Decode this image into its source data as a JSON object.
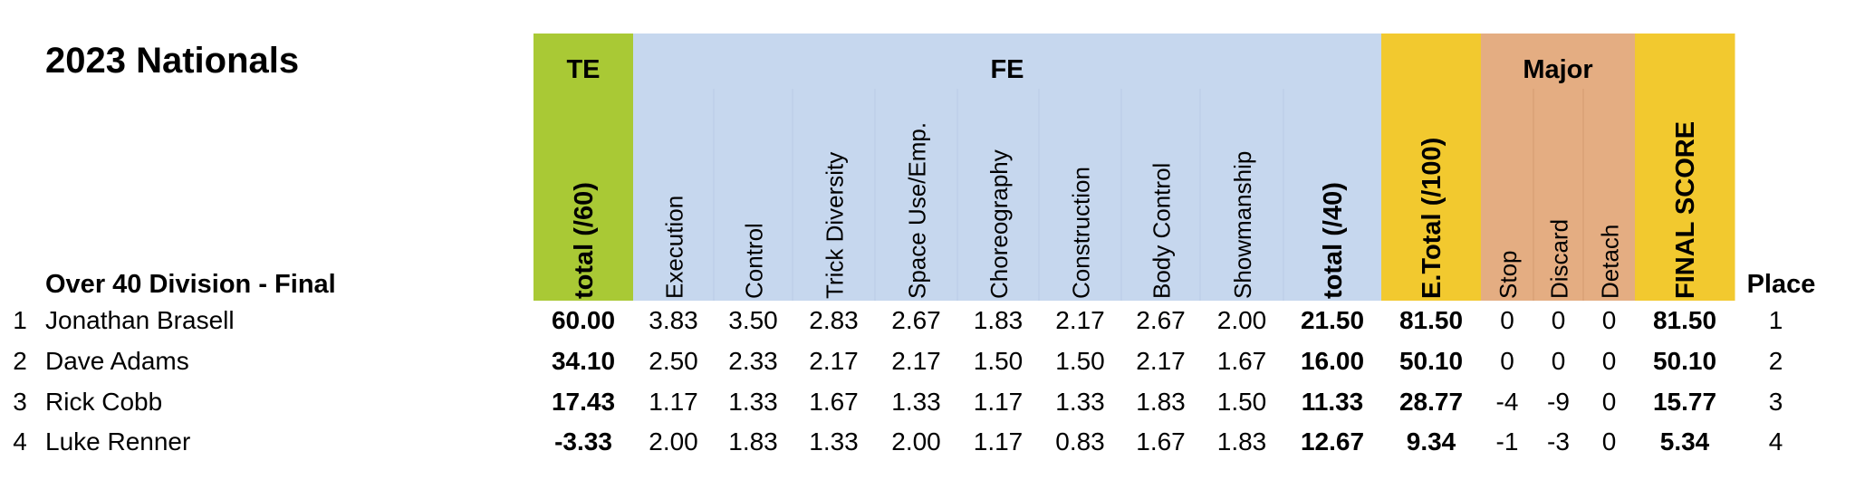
{
  "title": "2023 Nationals",
  "subtitle": "Over 40 Division - Final",
  "groups": [
    "TE",
    "FE",
    "Major"
  ],
  "columns": [
    "total (/60)",
    "Execution",
    "Control",
    "Trick Diversity",
    "Space Use/Emp.",
    "Choreography",
    "Construction",
    "Body Control",
    "Showmanship",
    "total (/40)",
    "E.Total (/100)",
    "Stop",
    "Discard",
    "Detach",
    "FINAL SCORE",
    "Place"
  ],
  "rows": [
    {
      "rank": "1",
      "name": "Jonathan Brasell",
      "scores": [
        "60.00",
        "3.83",
        "3.50",
        "2.83",
        "2.67",
        "1.83",
        "2.17",
        "2.67",
        "2.00",
        "21.50",
        "81.50",
        "0",
        "0",
        "0",
        "81.50"
      ],
      "place": "1"
    },
    {
      "rank": "2",
      "name": "Dave Adams",
      "scores": [
        "34.10",
        "2.50",
        "2.33",
        "2.17",
        "2.17",
        "1.50",
        "1.50",
        "2.17",
        "1.67",
        "16.00",
        "50.10",
        "0",
        "0",
        "0",
        "50.10"
      ],
      "place": "2"
    },
    {
      "rank": "3",
      "name": "Rick Cobb",
      "scores": [
        "17.43",
        "1.17",
        "1.33",
        "1.67",
        "1.33",
        "1.17",
        "1.33",
        "1.83",
        "1.50",
        "11.33",
        "28.77",
        "-4",
        "-9",
        "0",
        "15.77"
      ],
      "place": "3"
    },
    {
      "rank": "4",
      "name": "Luke Renner",
      "scores": [
        "-3.33",
        "2.00",
        "1.83",
        "1.33",
        "2.00",
        "1.17",
        "0.83",
        "1.67",
        "1.83",
        "12.67",
        "9.34",
        "-1",
        "-3",
        "0",
        "5.34"
      ],
      "place": "4"
    }
  ]
}
